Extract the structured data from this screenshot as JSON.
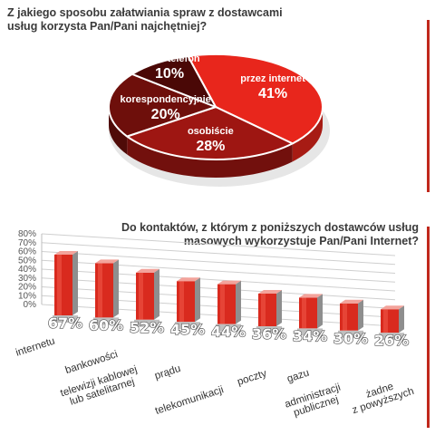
{
  "chart_data": [
    {
      "type": "pie",
      "title": "Z jakiego sposobu załatwiania spraw z dostawcami usług korzysta Pan/Pani najchętniej?",
      "slices": [
        {
          "label": "przez internet",
          "value": 41,
          "display": "41%",
          "color": "#e8261c"
        },
        {
          "label": "osobiście",
          "value": 28,
          "display": "28%",
          "color": "#9e1612"
        },
        {
          "label": "korespondencyjnie",
          "value": 20,
          "display": "20%",
          "color": "#6e0f0b"
        },
        {
          "label": "przez telefon",
          "value": 10,
          "display": "10%",
          "color": "#4a0806"
        }
      ]
    },
    {
      "type": "bar",
      "title": "Do kontaktów, z którym z poniższych dostawców usług masowych wykorzystuje Pan/Pani Internet?",
      "categories": [
        "internetu",
        "bankowości",
        "telewizji kablowej lub satelitarnej",
        "prądu",
        "telekomunikacji",
        "poczty",
        "gazu",
        "administracji publicznej",
        "żadne z powyższych"
      ],
      "values": [
        67,
        60,
        52,
        45,
        44,
        36,
        34,
        30,
        26
      ],
      "value_labels": [
        "67%",
        "60%",
        "52%",
        "45%",
        "44%",
        "36%",
        "34%",
        "30%",
        "26%"
      ],
      "yticks": [
        "0%",
        "10%",
        "20%",
        "30%",
        "40%",
        "50%",
        "60%",
        "70%",
        "80%"
      ],
      "ylim": [
        0,
        80
      ],
      "grid": true,
      "bar_color": "#d92a1e"
    }
  ]
}
